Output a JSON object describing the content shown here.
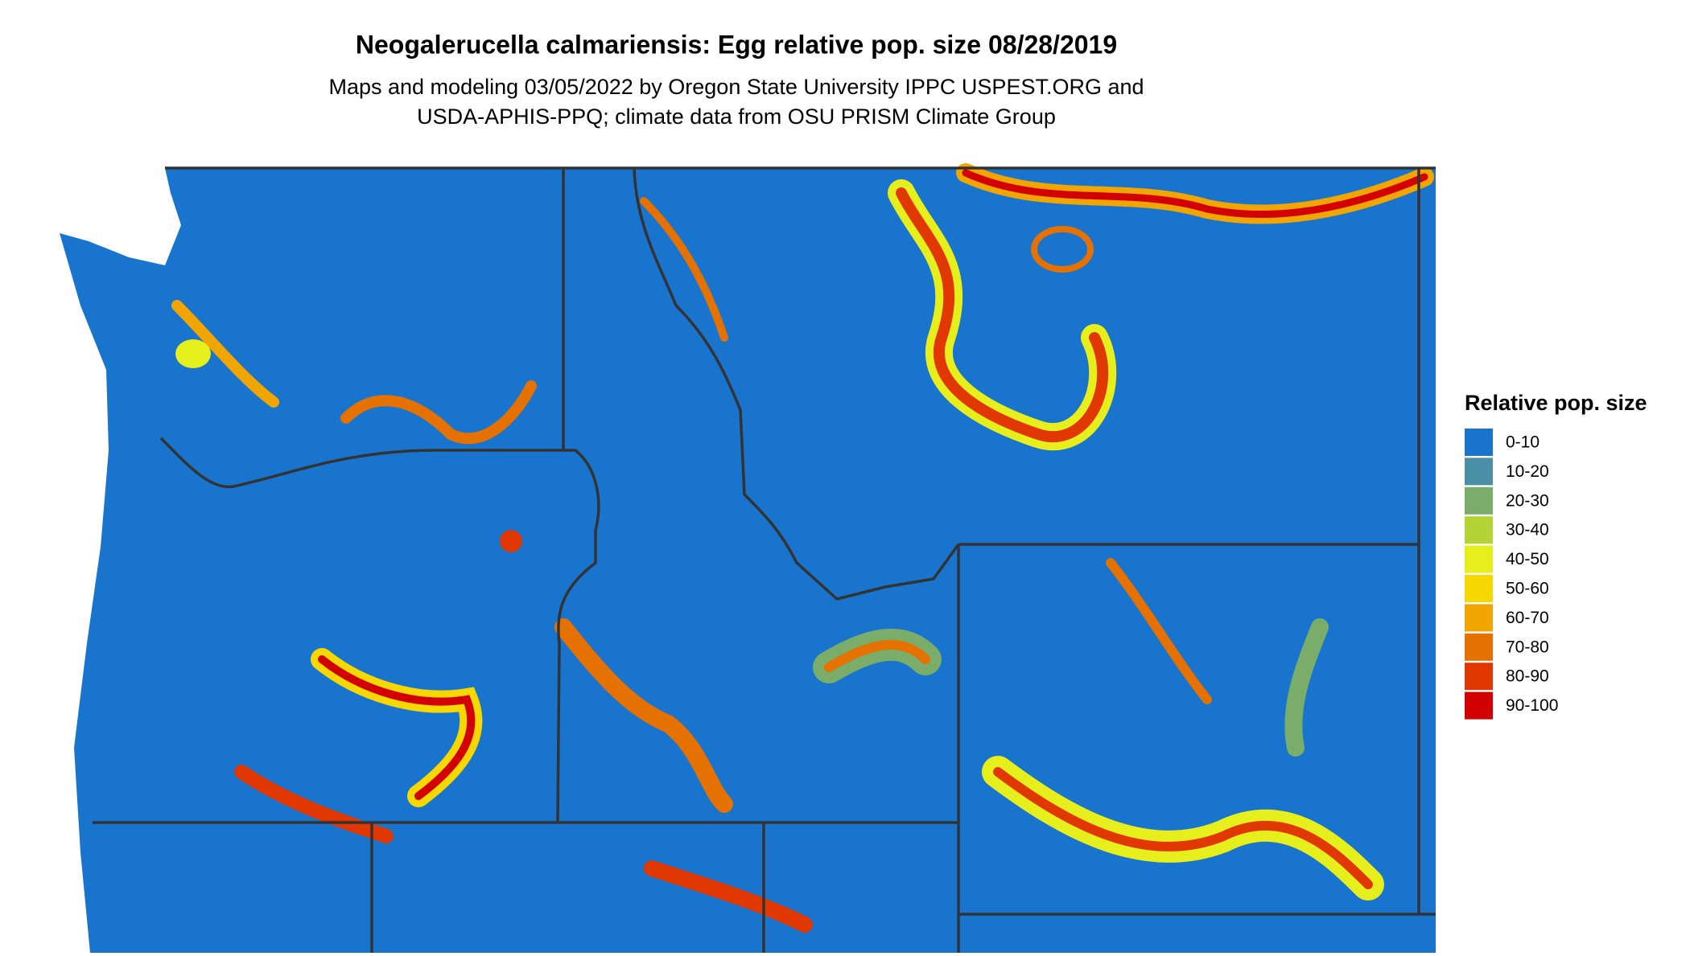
{
  "map": {
    "title": "Neogalerucella calmariensis: Egg relative pop. size 08/28/2019",
    "subtitle": [
      "Maps and modeling 03/05/2022 by Oregon State University IPPC USPEST.ORG and",
      "USDA-APHIS-PPQ; climate data from OSU PRISM Climate Group"
    ],
    "legend": {
      "title": "Relative pop. size",
      "items": [
        {
          "label": "0-10",
          "color": "#1874cd"
        },
        {
          "label": "10-20",
          "color": "#4a8fa6"
        },
        {
          "label": "20-30",
          "color": "#7aac6a"
        },
        {
          "label": "30-40",
          "color": "#b4d335"
        },
        {
          "label": "40-50",
          "color": "#e6ef1c"
        },
        {
          "label": "50-60",
          "color": "#f6d800"
        },
        {
          "label": "60-70",
          "color": "#f0a500"
        },
        {
          "label": "70-80",
          "color": "#e57100"
        },
        {
          "label": "80-90",
          "color": "#e03800"
        },
        {
          "label": "90-100",
          "color": "#d20000"
        }
      ]
    }
  }
}
